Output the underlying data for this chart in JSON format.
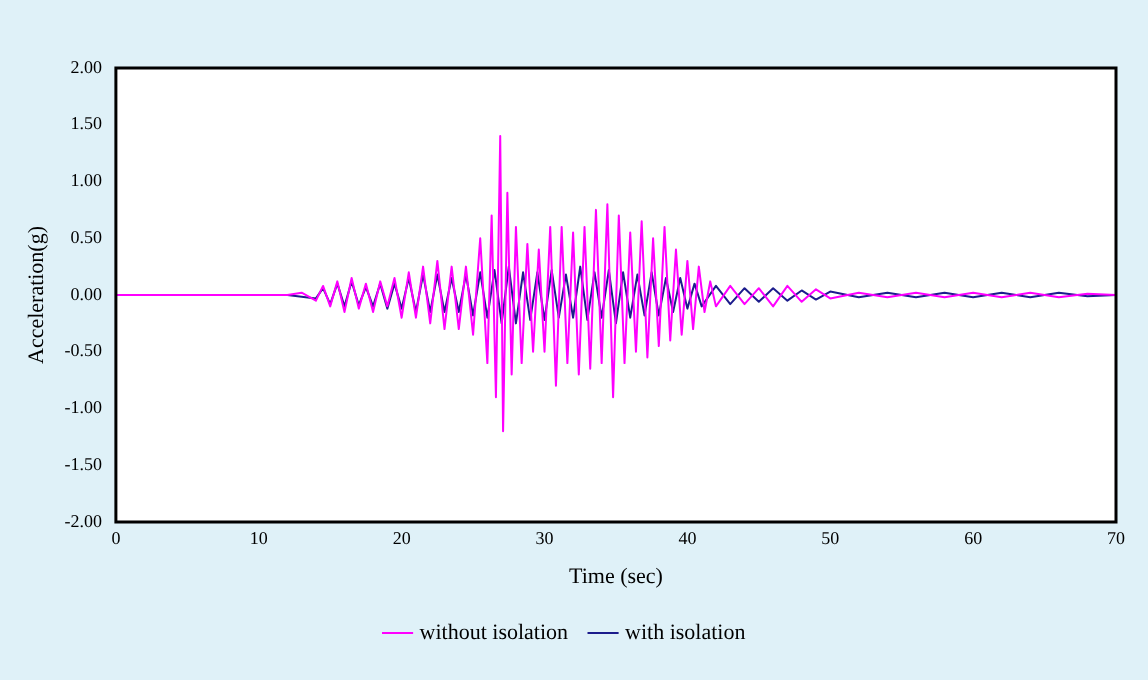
{
  "chart_data": {
    "type": "line",
    "xlabel": "Time (sec)",
    "ylabel": "Acceleration(g)",
    "xlim": [
      0,
      70
    ],
    "xticks": [
      0,
      10,
      20,
      30,
      40,
      50,
      60,
      70
    ],
    "ylim": [
      -2,
      2
    ],
    "yticks": [
      {
        "value": 2,
        "label": "2.00"
      },
      {
        "value": 1.5,
        "label": "1.50"
      },
      {
        "value": 1,
        "label": "1.00"
      },
      {
        "value": 0.5,
        "label": "0.50"
      },
      {
        "value": 0,
        "label": "0.00"
      },
      {
        "value": -0.5,
        "label": "-0.50"
      },
      {
        "value": -1,
        "label": "-1.00"
      },
      {
        "value": -1.5,
        "label": "-1.50"
      },
      {
        "value": -2,
        "label": "-2.00"
      }
    ],
    "grid": false,
    "legend": "bottom",
    "marker": "none",
    "line_style": "solid",
    "series": [
      {
        "name": "without isolation",
        "color": "#ff00ff",
        "x": [
          0,
          10,
          12,
          13,
          14,
          14.5,
          15,
          15.5,
          16,
          16.5,
          17,
          17.5,
          18,
          18.5,
          19,
          19.5,
          20,
          20.5,
          21,
          21.5,
          22,
          22.5,
          23,
          23.5,
          24,
          24.5,
          25,
          25.5,
          26,
          26.3,
          26.6,
          26.9,
          27.1,
          27.4,
          27.7,
          28,
          28.4,
          28.8,
          29.2,
          29.6,
          30,
          30.4,
          30.8,
          31.2,
          31.6,
          32,
          32.4,
          32.8,
          33.2,
          33.6,
          34,
          34.4,
          34.8,
          35.2,
          35.6,
          36,
          36.4,
          36.8,
          37.2,
          37.6,
          38,
          38.4,
          38.8,
          39.2,
          39.6,
          40,
          40.4,
          40.8,
          41.2,
          41.6,
          42,
          43,
          44,
          45,
          46,
          47,
          48,
          49,
          50,
          52,
          54,
          56,
          58,
          60,
          62,
          64,
          66,
          68,
          70
        ],
        "values": [
          0,
          0,
          0,
          0.02,
          -0.05,
          0.08,
          -0.1,
          0.12,
          -0.15,
          0.15,
          -0.12,
          0.1,
          -0.15,
          0.12,
          -0.1,
          0.15,
          -0.2,
          0.2,
          -0.2,
          0.25,
          -0.25,
          0.3,
          -0.3,
          0.25,
          -0.3,
          0.25,
          -0.35,
          0.5,
          -0.6,
          0.7,
          -0.9,
          1.4,
          -1.2,
          0.9,
          -0.7,
          0.6,
          -0.6,
          0.45,
          -0.5,
          0.4,
          -0.5,
          0.6,
          -0.8,
          0.6,
          -0.6,
          0.55,
          -0.7,
          0.6,
          -0.65,
          0.75,
          -0.6,
          0.8,
          -0.9,
          0.7,
          -0.6,
          0.55,
          -0.5,
          0.65,
          -0.55,
          0.5,
          -0.45,
          0.6,
          -0.4,
          0.4,
          -0.35,
          0.3,
          -0.3,
          0.25,
          -0.15,
          0.12,
          -0.1,
          0.08,
          -0.08,
          0.06,
          -0.1,
          0.08,
          -0.06,
          0.05,
          -0.03,
          0.02,
          -0.02,
          0.02,
          -0.02,
          0.02,
          -0.02,
          0.02,
          -0.02,
          0.01,
          0
        ]
      },
      {
        "name": "with isolation",
        "color": "#1c1c8c",
        "x": [
          0,
          12,
          14,
          14.5,
          15,
          15.5,
          16,
          16.5,
          17,
          17.5,
          18,
          18.5,
          19,
          19.5,
          20,
          20.5,
          21,
          21.5,
          22,
          22.5,
          23,
          23.5,
          24,
          24.5,
          25,
          25.5,
          26,
          26.5,
          27,
          27.5,
          28,
          28.5,
          29,
          29.5,
          30,
          30.5,
          31,
          31.5,
          32,
          32.5,
          33,
          33.5,
          34,
          34.5,
          35,
          35.5,
          36,
          36.5,
          37,
          37.5,
          38,
          38.5,
          39,
          39.5,
          40,
          40.5,
          41,
          42,
          43,
          44,
          45,
          46,
          47,
          48,
          49,
          50,
          52,
          54,
          56,
          58,
          60,
          62,
          64,
          66,
          68,
          70
        ],
        "values": [
          0,
          0,
          -0.03,
          0.06,
          -0.08,
          0.1,
          -0.1,
          0.12,
          -0.09,
          0.07,
          -0.1,
          0.1,
          -0.12,
          0.1,
          -0.12,
          0.15,
          -0.15,
          0.18,
          -0.15,
          0.18,
          -0.15,
          0.15,
          -0.15,
          0.18,
          -0.18,
          0.2,
          -0.2,
          0.22,
          -0.25,
          0.25,
          -0.25,
          0.2,
          -0.22,
          0.2,
          -0.22,
          0.22,
          -0.2,
          0.18,
          -0.2,
          0.25,
          -0.22,
          0.2,
          -0.2,
          0.22,
          -0.25,
          0.2,
          -0.2,
          0.18,
          -0.18,
          0.2,
          -0.18,
          0.15,
          -0.15,
          0.15,
          -0.12,
          0.1,
          -0.1,
          0.08,
          -0.08,
          0.06,
          -0.06,
          0.06,
          -0.05,
          0.04,
          -0.04,
          0.03,
          -0.02,
          0.02,
          -0.02,
          0.02,
          -0.02,
          0.02,
          -0.02,
          0.02,
          -0.01,
          0
        ]
      }
    ]
  }
}
